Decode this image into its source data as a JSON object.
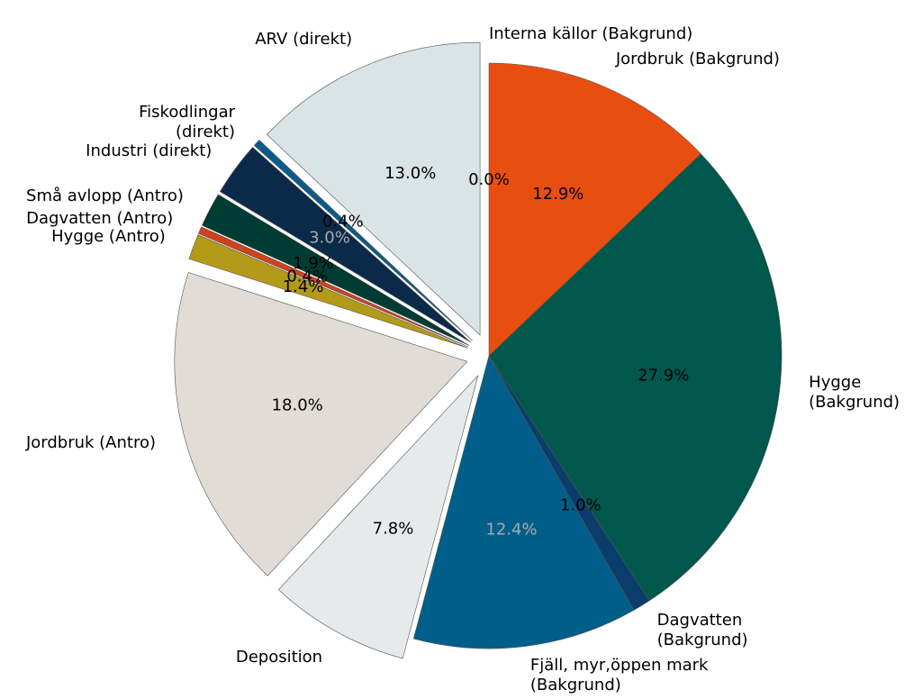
{
  "chart_data": {
    "type": "pie",
    "categories": [
      "Interna källor (Bakgrund)",
      "Jordbruk (Bakgrund)",
      "Hygge\n(Bakgrund)",
      "Dagvatten\n(Bakgrund)",
      "Fjäll, myr,öppen mark\n(Bakgrund)",
      "Deposition",
      "Jordbruk (Antro)",
      "Hygge (Antro)",
      "Dagvatten (Antro)",
      "Små avlopp (Antro)",
      "Industri (direkt)",
      "Fiskodlingar\n(direkt)",
      "ARV (direkt)"
    ],
    "values": [
      0.0,
      12.9,
      27.9,
      1.0,
      12.4,
      7.8,
      18.0,
      1.4,
      0.4,
      1.9,
      3.0,
      0.4,
      13.0
    ],
    "value_labels": [
      "0.0%",
      "12.9%",
      "27.9%",
      "1.0%",
      "12.4%",
      "7.8%",
      "18.0%",
      "1.4%",
      "0.4%",
      "1.9%",
      "3.0%",
      "0.4%",
      "13.0%"
    ],
    "colors": [
      "#f0a07a",
      "#e84e10",
      "#00574b",
      "#0a3d6b",
      "#005f8a",
      "#e6eaea",
      "#e2dcd6",
      "#b39a18",
      "#d0421b",
      "#003c33",
      "#0b2a4a",
      "#0b5b8a",
      "#dae3e6"
    ],
    "label_colors": [
      "#000000",
      "#000000",
      "#000000",
      "#000000",
      "#aaaaaa",
      "#000000",
      "#000000",
      "#000000",
      "#000000",
      "#000000",
      "#aaaaaa",
      "#000000",
      "#000000"
    ]
  }
}
